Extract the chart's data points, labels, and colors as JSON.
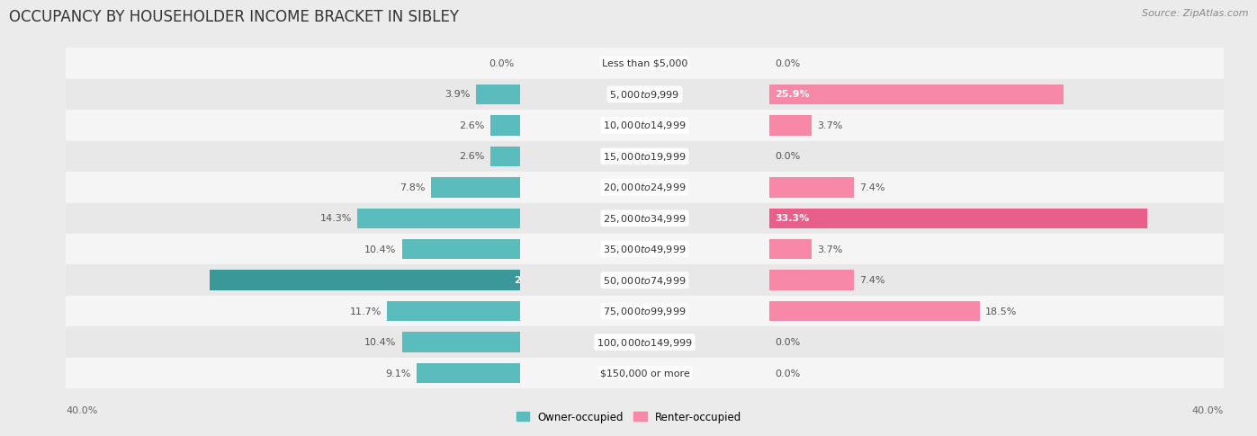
{
  "title": "OCCUPANCY BY HOUSEHOLDER INCOME BRACKET IN SIBLEY",
  "source": "Source: ZipAtlas.com",
  "categories": [
    "Less than $5,000",
    "$5,000 to $9,999",
    "$10,000 to $14,999",
    "$15,000 to $19,999",
    "$20,000 to $24,999",
    "$25,000 to $34,999",
    "$35,000 to $49,999",
    "$50,000 to $74,999",
    "$75,000 to $99,999",
    "$100,000 to $149,999",
    "$150,000 or more"
  ],
  "owner_values": [
    0.0,
    3.9,
    2.6,
    2.6,
    7.8,
    14.3,
    10.4,
    27.3,
    11.7,
    10.4,
    9.1
  ],
  "renter_values": [
    0.0,
    25.9,
    3.7,
    0.0,
    7.4,
    33.3,
    3.7,
    7.4,
    18.5,
    0.0,
    0.0
  ],
  "owner_color": "#5bbcbd",
  "renter_color": "#f888a8",
  "owner_color_dark": "#3a9898",
  "renter_color_dark": "#e8608a",
  "background_color": "#ebebeb",
  "row_bg_even": "#f5f5f5",
  "row_bg_odd": "#e8e8e8",
  "axis_limit": 40.0,
  "bar_height": 0.65,
  "title_fontsize": 12,
  "label_fontsize": 8,
  "category_fontsize": 8,
  "legend_fontsize": 8.5,
  "source_fontsize": 8
}
